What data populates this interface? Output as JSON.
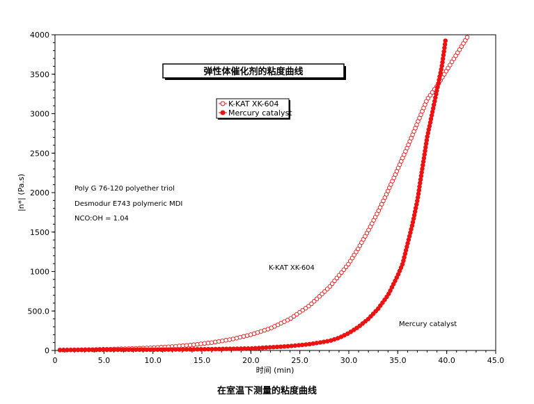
{
  "chart_data": {
    "type": "line",
    "title": "弹性体催化剂的粘度曲线",
    "xlabel": "时间 (min)",
    "ylabel": "|n*| (Pa.s)",
    "xlim": [
      0,
      45
    ],
    "ylim": [
      0,
      4000
    ],
    "x_ticks": [
      "0",
      "5.0",
      "10.0",
      "15.0",
      "20.0",
      "25.0",
      "30.0",
      "35.0",
      "40.0",
      "45.0"
    ],
    "y_ticks": [
      "0",
      "500.0",
      "1000",
      "1500",
      "2000",
      "2500",
      "3000",
      "3500",
      "4000"
    ],
    "legend_position": "top-center",
    "grid": false,
    "series": [
      {
        "name": "K-KAT XK-604",
        "color": "#ee1111",
        "marker": "open-circle",
        "x": [
          0.5,
          2,
          4,
          6,
          8,
          10,
          12,
          14,
          16,
          18,
          20,
          22,
          24,
          26,
          28,
          30,
          31,
          32,
          33,
          34,
          35,
          36,
          37,
          38,
          39,
          40,
          41,
          42.2
        ],
        "y": [
          5,
          8,
          12,
          18,
          25,
          35,
          50,
          70,
          100,
          140,
          200,
          280,
          400,
          570,
          800,
          1100,
          1300,
          1520,
          1760,
          2020,
          2300,
          2580,
          2880,
          3180,
          3350,
          3550,
          3750,
          3990
        ]
      },
      {
        "name": "Mercury catalyst",
        "color": "#ee1111",
        "marker": "filled-circle",
        "x": [
          0.5,
          5,
          10,
          15,
          20,
          22,
          24,
          26,
          28,
          29,
          30,
          31,
          32,
          33,
          34,
          35,
          35.5,
          36,
          36.5,
          37,
          37.5,
          38,
          38.5,
          39,
          39.5,
          39.9
        ],
        "y": [
          5,
          8,
          10,
          15,
          25,
          40,
          55,
          80,
          120,
          160,
          220,
          300,
          400,
          530,
          700,
          950,
          1100,
          1350,
          1600,
          1900,
          2300,
          2700,
          3000,
          3300,
          3600,
          3950
        ]
      }
    ],
    "annotations": [
      "Poly G 76-120 polyether triol",
      "Desmodur E743 polymeric MDI",
      "NCO:OH = 1.04",
      "K-KAT XK-604",
      "Mercury catalyst"
    ]
  },
  "caption": "在室温下测量的粘度曲线"
}
